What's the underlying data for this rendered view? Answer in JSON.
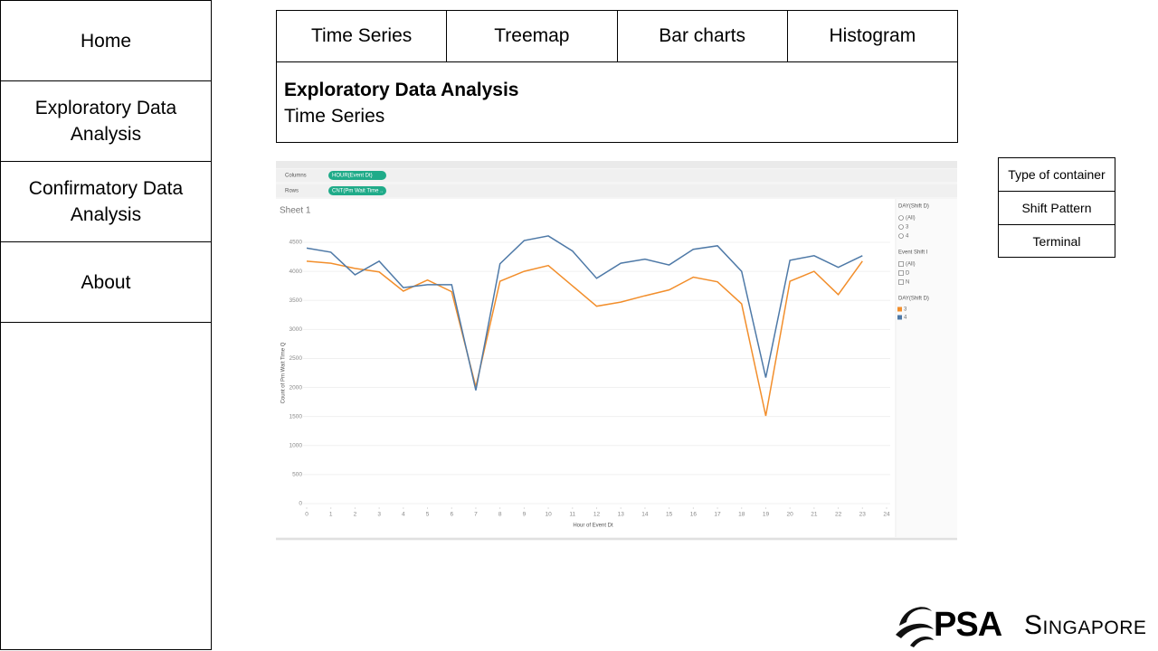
{
  "nav": {
    "items": [
      "Home",
      "Exploratory Data Analysis",
      "Confirmatory Data Analysis",
      "About"
    ]
  },
  "tabs": [
    "Time Series",
    "Treemap",
    "Bar charts",
    "Histogram"
  ],
  "header": {
    "title": "Exploratory Data Analysis",
    "subtitle": "Time Series"
  },
  "container_panel": {
    "items": [
      "Type of container",
      "Shift Pattern",
      "Terminal"
    ]
  },
  "logo": {
    "brand": "PSA",
    "place": "Singapore"
  },
  "chart_data": {
    "type": "line",
    "title": "Sheet 1",
    "columns_shelf": {
      "label": "Columns",
      "pill": "HOUR(Event Dt)"
    },
    "rows_shelf": {
      "label": "Rows",
      "pill": "CNT(Pm Wait Time .."
    },
    "x_label": "Hour of Event Dt",
    "y_label": "Count of Pm Wait Time Q",
    "x": [
      0,
      1,
      2,
      3,
      4,
      5,
      6,
      7,
      8,
      9,
      10,
      11,
      12,
      13,
      14,
      15,
      16,
      17,
      18,
      19,
      20,
      21,
      22,
      23
    ],
    "xlim": [
      0,
      24
    ],
    "xticks": [
      0,
      1,
      2,
      3,
      4,
      5,
      6,
      7,
      8,
      9,
      10,
      11,
      12,
      13,
      14,
      15,
      16,
      17,
      18,
      19,
      20,
      21,
      22,
      23,
      24
    ],
    "ylim": [
      0,
      4500
    ],
    "yticks": [
      0,
      500,
      1000,
      1500,
      2000,
      2500,
      3000,
      3500,
      4000,
      4500
    ],
    "grid": true,
    "filters": [
      {
        "title": "DAY(Shift D)",
        "options": [
          "(All)",
          "3",
          "4"
        ]
      },
      {
        "title": "Event Shift I",
        "options": [
          "(All)",
          "D",
          "N"
        ]
      }
    ],
    "legend_title": "DAY(Shift D)",
    "series": [
      {
        "name": "3",
        "color": "#f28e2b",
        "values": [
          4175,
          4140,
          4050,
          3990,
          3660,
          3850,
          3650,
          2010,
          3830,
          4000,
          4100,
          3750,
          3400,
          3470,
          3580,
          3680,
          3900,
          3820,
          3440,
          1510,
          3830,
          4000,
          3600,
          4175
        ]
      },
      {
        "name": "4",
        "color": "#4e79a7",
        "values": [
          4400,
          4330,
          3940,
          4175,
          3720,
          3770,
          3770,
          1950,
          4130,
          4530,
          4610,
          4350,
          3880,
          4140,
          4210,
          4110,
          4380,
          4440,
          4000,
          2170,
          4190,
          4270,
          4070,
          4270
        ]
      }
    ]
  }
}
